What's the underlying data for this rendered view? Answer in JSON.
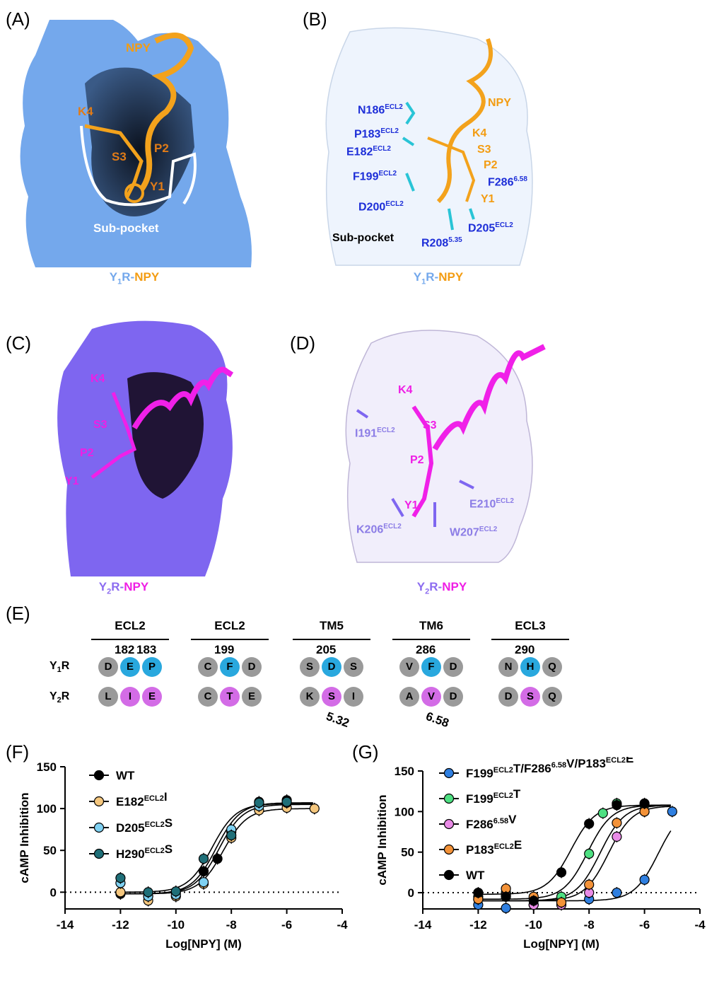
{
  "panels": {
    "A": {
      "label": "(A)",
      "texts": [
        "NPY",
        "K4",
        "S3",
        "P2",
        "Y1",
        "Sub-pocket"
      ],
      "caption": {
        "main": "Y",
        "sub": "1",
        "rest": "R-",
        "ligand": "NPY"
      }
    },
    "B": {
      "label": "(B)",
      "texts": [
        "NPY",
        "K4",
        "S3",
        "P2",
        "Y1",
        "Sub-pocket"
      ],
      "residues": [
        {
          "name": "N186",
          "sup": "ECL2"
        },
        {
          "name": "P183",
          "sup": "ECL2"
        },
        {
          "name": "E182",
          "sup": "ECL2"
        },
        {
          "name": "F199",
          "sup": "ECL2"
        },
        {
          "name": "D200",
          "sup": "ECL2"
        },
        {
          "name": "F286",
          "sup": "6.58"
        },
        {
          "name": "D205",
          "sup": "ECL2"
        },
        {
          "name": "R208",
          "sup": "5.35"
        }
      ],
      "caption": {
        "main": "Y",
        "sub": "1",
        "rest": "R-",
        "ligand": "NPY"
      }
    },
    "C": {
      "label": "(C)",
      "texts": [
        "K4",
        "S3",
        "P2",
        "Y1"
      ],
      "caption": {
        "main": "Y",
        "sub": "2",
        "rest": "R-",
        "ligand": "NPY"
      }
    },
    "D": {
      "label": "(D)",
      "texts": [
        "K4",
        "S3",
        "P2",
        "Y1"
      ],
      "residues": [
        {
          "name": "I191",
          "sup": "ECL2"
        },
        {
          "name": "E210",
          "sup": "ECL2"
        },
        {
          "name": "K206",
          "sup": "ECL2"
        },
        {
          "name": "W207",
          "sup": "ECL2"
        }
      ],
      "caption": {
        "main": "Y",
        "sub": "2",
        "rest": "R-",
        "ligand": "NPY"
      }
    },
    "E": {
      "label": "(E)",
      "groups": [
        {
          "header": "ECL2",
          "numbers": [
            "182",
            "183"
          ],
          "y1": [
            "D",
            "E",
            "P"
          ],
          "y2": [
            "L",
            "I",
            "E"
          ],
          "hl": [
            1,
            2
          ]
        },
        {
          "header": "ECL2",
          "numbers": [
            "199"
          ],
          "y1": [
            "C",
            "F",
            "D"
          ],
          "y2": [
            "C",
            "T",
            "E"
          ],
          "hl": [
            1
          ]
        },
        {
          "header": "TM5",
          "numbers": [
            "205"
          ],
          "y1": [
            "S",
            "D",
            "S"
          ],
          "y2": [
            "K",
            "S",
            "I"
          ],
          "hl": [
            1
          ],
          "bottom": "5.32"
        },
        {
          "header": "TM6",
          "numbers": [
            "286"
          ],
          "y1": [
            "V",
            "F",
            "D"
          ],
          "y2": [
            "A",
            "V",
            "D"
          ],
          "hl": [
            1
          ],
          "bottom": "6.58"
        },
        {
          "header": "ECL3",
          "numbers": [
            "290"
          ],
          "y1": [
            "N",
            "H",
            "Q"
          ],
          "y2": [
            "D",
            "S",
            "Q"
          ],
          "hl": [
            1
          ]
        }
      ],
      "row_labels": [
        {
          "main": "Y",
          "sub": "1",
          "rest": "R"
        },
        {
          "main": "Y",
          "sub": "2",
          "rest": "R"
        }
      ]
    },
    "F": {
      "label": "(F)"
    },
    "G": {
      "label": "(G)"
    }
  },
  "chart_data": [
    {
      "type": "scatter",
      "panel": "F",
      "xlabel": "Log[NPY] (M)",
      "ylabel": "cAMP Inhibition",
      "xlim": [
        -14,
        -4
      ],
      "ylim": [
        -20,
        150
      ],
      "xticks": [
        -14,
        -12,
        -10,
        -8,
        -6,
        -4
      ],
      "yticks": [
        0,
        50,
        100,
        150
      ],
      "legend_position": "top-left",
      "series": [
        {
          "name": "WT",
          "sup": "",
          "suffix": "",
          "color": "#000000",
          "x": [
            -12,
            -11,
            -10,
            -9,
            -8.5,
            -8,
            -7,
            -6,
            -5
          ],
          "y": [
            -2,
            -5,
            0,
            25,
            40,
            72,
            108,
            110,
            null
          ],
          "curve": {
            "bottom": -2,
            "top": 107,
            "logec50": -8.55
          }
        },
        {
          "name": "E182",
          "sup": "ECL2",
          "suffix": "I",
          "color": "#f5c77e",
          "x": [
            -12,
            -11,
            -10,
            -9,
            -8.5,
            -8,
            -7,
            -6,
            -5
          ],
          "y": [
            0,
            -10,
            -5,
            10,
            null,
            65,
            98,
            101,
            100
          ],
          "curve": {
            "bottom": -2,
            "top": 100,
            "logec50": -8.3
          }
        },
        {
          "name": "D205",
          "sup": "ECL2",
          "suffix": "S",
          "color": "#7fd1f2",
          "x": [
            -12,
            -11,
            -10,
            -9,
            -8.5,
            -8,
            -7,
            -6
          ],
          "y": [
            11,
            -5,
            -3,
            12,
            null,
            75,
            103,
            107
          ],
          "curve": {
            "bottom": -2,
            "top": 105,
            "logec50": -8.45
          }
        },
        {
          "name": "H290",
          "sup": "ECL2",
          "suffix": "S",
          "color": "#1f6f78",
          "x": [
            -12,
            -11,
            -10,
            -9,
            -8.5,
            -8,
            -7,
            -6
          ],
          "y": [
            17,
            0,
            1,
            40,
            null,
            68,
            107,
            108
          ],
          "curve": {
            "bottom": 0,
            "top": 106,
            "logec50": -8.7
          }
        }
      ]
    },
    {
      "type": "scatter",
      "panel": "G",
      "xlabel": "Log[NPY] (M)",
      "ylabel": "cAMP Inhibition",
      "xlim": [
        -14,
        -4
      ],
      "ylim": [
        -20,
        150
      ],
      "xticks": [
        -14,
        -12,
        -10,
        -8,
        -6,
        -4
      ],
      "yticks": [
        0,
        50,
        100,
        150
      ],
      "legend_position": "top-left",
      "series": [
        {
          "name": "F199",
          "sup": "ECL2",
          "suffix": "T/F286",
          "sup2": "6.58",
          "suffix2": "V/P183",
          "sup3": "ECL2",
          "suffix3": "E",
          "color": "#2f7fe0",
          "x": [
            -12,
            -11,
            -10,
            -9,
            -8,
            -7,
            -6,
            -5
          ],
          "y": [
            -15,
            -19,
            -15,
            -12,
            -8,
            0,
            16,
            100
          ],
          "curve": {
            "bottom": -10,
            "top": 107,
            "logec50": -5.5
          }
        },
        {
          "name": "F199",
          "sup": "ECL2",
          "suffix": "T",
          "color": "#4ee082",
          "x": [
            -12,
            -11,
            -10,
            -9,
            -8,
            -7.5,
            -7,
            -6
          ],
          "y": [
            -5,
            0,
            -7,
            -5,
            48,
            98,
            110,
            108
          ],
          "curve": {
            "bottom": -8,
            "top": 108,
            "logec50": -8.05
          }
        },
        {
          "name": "F286",
          "sup": "6.58",
          "suffix": "V",
          "color": "#e98be6",
          "x": [
            -12,
            -11,
            -10,
            -9,
            -8,
            -7,
            -6
          ],
          "y": [
            -8,
            -3,
            -15,
            -15,
            0,
            69,
            100
          ],
          "curve": {
            "bottom": -10,
            "top": 107,
            "logec50": -7.3
          }
        },
        {
          "name": "P183",
          "sup": "ECL2",
          "suffix": "E",
          "color": "#f39238",
          "x": [
            -12,
            -11,
            -10,
            -9,
            -8,
            -7,
            -6
          ],
          "y": [
            -8,
            5,
            -5,
            -12,
            10,
            86,
            100
          ],
          "curve": {
            "bottom": -10,
            "top": 108,
            "logec50": -7.6
          }
        },
        {
          "name": "WT",
          "sup": "",
          "suffix": "",
          "color": "#000000",
          "x": [
            -12,
            -11,
            -10,
            -9,
            -8,
            -7,
            -6
          ],
          "y": [
            0,
            -5,
            -10,
            25,
            85,
            108,
            110
          ],
          "curve": {
            "bottom": -2,
            "top": 108,
            "logec50": -8.65
          }
        }
      ]
    }
  ]
}
